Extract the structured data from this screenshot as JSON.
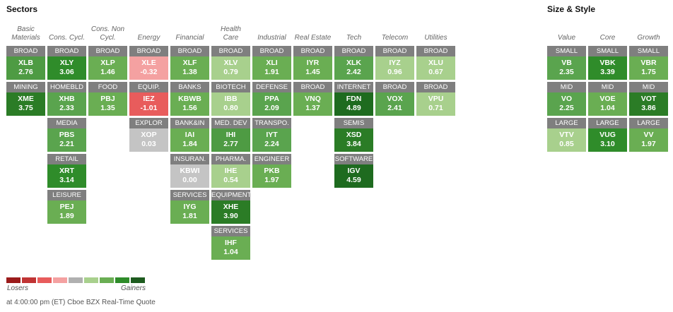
{
  "sectors_title": "Sectors",
  "style_title": "Size & Style",
  "colors": {
    "label_bg": "#7f7f7f",
    "scale": [
      "#9b1c1c",
      "#c03434",
      "#e85c5c",
      "#f4a1a1",
      "#b0b0b0",
      "#a8d08d",
      "#6aae53",
      "#2f8c2a",
      "#1e5b1f"
    ]
  },
  "sector_columns": [
    {
      "header": [
        "Basic",
        "Materials"
      ],
      "cells": [
        {
          "label": "BROAD",
          "ticker": "XLB",
          "change": "2.76",
          "color": "#4e9b43"
        },
        {
          "label": "MINING",
          "ticker": "XME",
          "change": "3.75",
          "color": "#2b7c26"
        }
      ]
    },
    {
      "header": [
        "Cons. Cycl."
      ],
      "cells": [
        {
          "label": "BROAD",
          "ticker": "XLY",
          "change": "3.06",
          "color": "#2f8c2a"
        },
        {
          "label": "HOMEBLD",
          "ticker": "XHB",
          "change": "2.33",
          "color": "#5aa44e"
        },
        {
          "label": "MEDIA",
          "ticker": "PBS",
          "change": "2.21",
          "color": "#5aa44e"
        },
        {
          "label": "RETAIL",
          "ticker": "XRT",
          "change": "3.14",
          "color": "#2f8c2a"
        },
        {
          "label": "LEISURE",
          "ticker": "PEJ",
          "change": "1.89",
          "color": "#6aae53"
        }
      ]
    },
    {
      "header": [
        "Cons. Non",
        "Cycl."
      ],
      "cells": [
        {
          "label": "BROAD",
          "ticker": "XLP",
          "change": "1.46",
          "color": "#6aae53"
        },
        {
          "label": "FOOD",
          "ticker": "PBJ",
          "change": "1.35",
          "color": "#6aae53"
        }
      ]
    },
    {
      "header": [
        "Energy"
      ],
      "cells": [
        {
          "label": "BROAD",
          "ticker": "XLE",
          "change": "-0.32",
          "color": "#f4a1a1"
        },
        {
          "label": "EQUIP.",
          "ticker": "IEZ",
          "change": "-1.01",
          "color": "#e85c5c"
        },
        {
          "label": "EXPLOR",
          "ticker": "XOP",
          "change": "0.03",
          "color": "#c4c4c4"
        }
      ]
    },
    {
      "header": [
        "Financial"
      ],
      "cells": [
        {
          "label": "BROAD",
          "ticker": "XLF",
          "change": "1.38",
          "color": "#6aae53"
        },
        {
          "label": "BANKS",
          "ticker": "KBWB",
          "change": "1.56",
          "color": "#6aae53"
        },
        {
          "label": "BANK&IN",
          "ticker": "IAI",
          "change": "1.84",
          "color": "#6aae53"
        },
        {
          "label": "INSURAN.",
          "ticker": "KBWI",
          "change": "0.00",
          "color": "#c4c4c4"
        },
        {
          "label": "SERVICES",
          "ticker": "IYG",
          "change": "1.81",
          "color": "#6aae53"
        }
      ]
    },
    {
      "header": [
        "Health",
        "Care"
      ],
      "cells": [
        {
          "label": "BROAD",
          "ticker": "XLV",
          "change": "0.79",
          "color": "#a8d08d"
        },
        {
          "label": "BIOTECH",
          "ticker": "IBB",
          "change": "0.80",
          "color": "#a8d08d"
        },
        {
          "label": "MED. DEV",
          "ticker": "IHI",
          "change": "2.77",
          "color": "#4e9b43"
        },
        {
          "label": "PHARMA.",
          "ticker": "IHE",
          "change": "0.54",
          "color": "#a8d08d"
        },
        {
          "label": "EQUIPMENT",
          "ticker": "XHE",
          "change": "3.90",
          "color": "#2b7c26"
        },
        {
          "label": "SERVICES",
          "ticker": "IHF",
          "change": "1.04",
          "color": "#6aae53"
        }
      ]
    },
    {
      "header": [
        "Industrial"
      ],
      "cells": [
        {
          "label": "BROAD",
          "ticker": "XLI",
          "change": "1.91",
          "color": "#6aae53"
        },
        {
          "label": "DEFENSE",
          "ticker": "PPA",
          "change": "2.09",
          "color": "#5aa44e"
        },
        {
          "label": "TRANSPO.",
          "ticker": "IYT",
          "change": "2.24",
          "color": "#5aa44e"
        },
        {
          "label": "ENGINEER",
          "ticker": "PKB",
          "change": "1.97",
          "color": "#6aae53"
        }
      ]
    },
    {
      "header": [
        "Real Estate"
      ],
      "cells": [
        {
          "label": "BROAD",
          "ticker": "IYR",
          "change": "1.45",
          "color": "#6aae53"
        },
        {
          "label": "BROAD",
          "ticker": "VNQ",
          "change": "1.37",
          "color": "#6aae53"
        }
      ]
    },
    {
      "header": [
        "Tech"
      ],
      "cells": [
        {
          "label": "BROAD",
          "ticker": "XLK",
          "change": "2.42",
          "color": "#5aa44e"
        },
        {
          "label": "INTERNET",
          "ticker": "FDN",
          "change": "4.89",
          "color": "#1e6b1f"
        },
        {
          "label": "SEMIS",
          "ticker": "XSD",
          "change": "3.84",
          "color": "#2b7c26"
        },
        {
          "label": "SOFTWARE",
          "ticker": "IGV",
          "change": "4.59",
          "color": "#1e6b1f"
        }
      ]
    },
    {
      "header": [
        "Telecom"
      ],
      "cells": [
        {
          "label": "BROAD",
          "ticker": "IYZ",
          "change": "0.96",
          "color": "#a8d08d"
        },
        {
          "label": "BROAD",
          "ticker": "VOX",
          "change": "2.41",
          "color": "#5aa44e"
        }
      ]
    },
    {
      "header": [
        "Utilities"
      ],
      "cells": [
        {
          "label": "BROAD",
          "ticker": "XLU",
          "change": "0.67",
          "color": "#a8d08d"
        },
        {
          "label": "BROAD",
          "ticker": "VPU",
          "change": "0.71",
          "color": "#a8d08d"
        }
      ]
    }
  ],
  "style_columns": [
    {
      "header": [
        "Value"
      ],
      "cells": [
        {
          "label": "SMALL",
          "ticker": "VB",
          "change": "2.35",
          "color": "#5aa44e"
        },
        {
          "label": "MID",
          "ticker": "VO",
          "change": "2.25",
          "color": "#5aa44e"
        },
        {
          "label": "LARGE",
          "ticker": "VTV",
          "change": "0.85",
          "color": "#a8d08d"
        }
      ]
    },
    {
      "header": [
        "Core"
      ],
      "cells": [
        {
          "label": "SMALL",
          "ticker": "VBK",
          "change": "3.39",
          "color": "#2f8c2a"
        },
        {
          "label": "MID",
          "ticker": "VOE",
          "change": "1.04",
          "color": "#6aae53"
        },
        {
          "label": "LARGE",
          "ticker": "VUG",
          "change": "3.10",
          "color": "#2f8c2a"
        }
      ]
    },
    {
      "header": [
        "Growth"
      ],
      "cells": [
        {
          "label": "SMALL",
          "ticker": "VBR",
          "change": "1.75",
          "color": "#6aae53"
        },
        {
          "label": "MID",
          "ticker": "VOT",
          "change": "3.86",
          "color": "#2b7c26"
        },
        {
          "label": "LARGE",
          "ticker": "VV",
          "change": "1.97",
          "color": "#6aae53"
        }
      ]
    }
  ],
  "legend": {
    "losers": "Losers",
    "gainers": "Gainers"
  },
  "footer": "at 4:00:00 pm (ET) Cboe BZX Real-Time Quote"
}
